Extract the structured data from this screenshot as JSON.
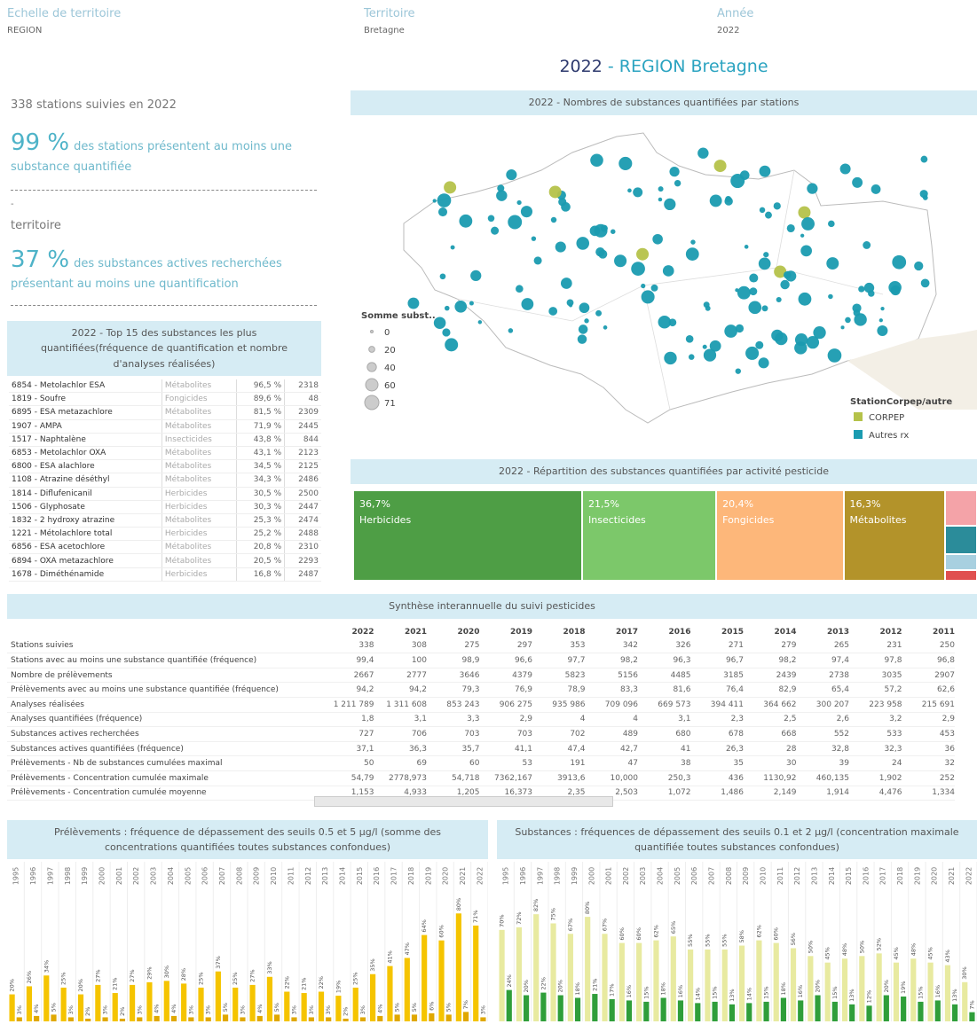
{
  "filters": [
    {
      "label": "Echelle de territoire",
      "value": "REGION"
    },
    {
      "label": "Territoire",
      "value": "Bretagne"
    },
    {
      "label": "Année",
      "value": "2022"
    }
  ],
  "title": {
    "year": "2022",
    "rest": "- REGION Bretagne"
  },
  "kpis": {
    "stations": "338 stations suivies en 2022",
    "stations_pct": "99 %",
    "stations_text": "des stations présentent au moins une substance quantifiée",
    "dash": "-",
    "territory": "territoire",
    "substances_pct": "37 %",
    "substances_text": "des substances actives recherchées présentant au moins une quantification"
  },
  "top15": {
    "title": "2022 - Top 15 des substances les plus quantifiées(fréquence de quantification et nombre d'analyses réalisées)",
    "rows": [
      [
        "6854 - Metolachlor ESA",
        "Métabolites",
        "96,5 %",
        "2318"
      ],
      [
        "1819 - Soufre",
        "Fongicides",
        "89,6 %",
        "48"
      ],
      [
        "6895 - ESA metazachlore",
        "Métabolites",
        "81,5 %",
        "2309"
      ],
      [
        "1907 - AMPA",
        "Métabolites",
        "71,9 %",
        "2445"
      ],
      [
        "1517 - Naphtalène",
        "Insecticides",
        "43,8 %",
        "844"
      ],
      [
        "6853 - Metolachlor OXA",
        "Métabolites",
        "43,1 %",
        "2123"
      ],
      [
        "6800 - ESA alachlore",
        "Métabolites",
        "34,5 %",
        "2125"
      ],
      [
        "1108 - Atrazine déséthyl",
        "Métabolites",
        "34,3 %",
        "2486"
      ],
      [
        "1814 - Diflufenicanil",
        "Herbicides",
        "30,5 %",
        "2500"
      ],
      [
        "1506 - Glyphosate",
        "Herbicides",
        "30,3 %",
        "2447"
      ],
      [
        "1832 - 2 hydroxy atrazine",
        "Métabolites",
        "25,3 %",
        "2474"
      ],
      [
        "1221 - Métolachlore total",
        "Herbicides",
        "25,2 %",
        "2488"
      ],
      [
        "6856 - ESA acetochlore",
        "Métabolites",
        "20,8 %",
        "2310"
      ],
      [
        "6894 - OXA metazachlore",
        "Métabolites",
        "20,5 %",
        "2293"
      ],
      [
        "1678 - Diméthénamide",
        "Herbicides",
        "16,8 %",
        "2487"
      ]
    ]
  },
  "map": {
    "title": "2022 - Nombres de substances quantifiées par stations",
    "size_legend": {
      "title": "Somme subst..",
      "values": [
        0,
        20,
        40,
        60,
        71
      ]
    },
    "color_legend": {
      "title": "StationCorpep/autre",
      "items": [
        {
          "name": "CORPEP",
          "color": "#b5c24a"
        },
        {
          "name": "Autres rx",
          "color": "#1a9bb0"
        }
      ]
    }
  },
  "treemap": {
    "title": "2022 - Répartition des substances quantifiées par activité pesticide",
    "type": "treemap",
    "segments": [
      {
        "name": "Herbicides",
        "value": 36.7,
        "value_label": "36,7%",
        "color": "#4e9e45"
      },
      {
        "name": "Insecticides",
        "value": 21.5,
        "value_label": "21,5%",
        "color": "#7cc86a"
      },
      {
        "name": "Fongicides",
        "value": 20.4,
        "value_label": "20,4%",
        "color": "#fdb77a"
      },
      {
        "name": "Métabolites",
        "value": 16.3,
        "value_label": "16,3%",
        "color": "#b3932a"
      },
      {
        "name": null,
        "value": 2.0,
        "color": "#f4a3a8"
      },
      {
        "name": null,
        "value": 1.6,
        "color": "#2b8c9a"
      },
      {
        "name": null,
        "value": 0.9,
        "color": "#a8d0e0"
      },
      {
        "name": null,
        "value": 0.6,
        "color": "#e05050"
      }
    ]
  },
  "synthesis": {
    "title": "Synthèse interannuelle du suivi pesticides",
    "years": [
      "2022",
      "2021",
      "2020",
      "2019",
      "2018",
      "2017",
      "2016",
      "2015",
      "2014",
      "2013",
      "2012",
      "2011"
    ],
    "rows": [
      {
        "label": "Stations suivies",
        "cells": [
          "338",
          "308",
          "275",
          "297",
          "353",
          "342",
          "326",
          "271",
          "279",
          "265",
          "231",
          "250"
        ]
      },
      {
        "label": "Stations avec au moins une substance quantifiée (fréquence)",
        "cells": [
          "99,4",
          "100",
          "98,9",
          "96,6",
          "97,7",
          "98,2",
          "96,3",
          "96,7",
          "98,2",
          "97,4",
          "97,8",
          "96,8"
        ]
      },
      {
        "label": "Nombre de prélèvements",
        "cells": [
          "2667",
          "2777",
          "3646",
          "4379",
          "5823",
          "5156",
          "4485",
          "3185",
          "2439",
          "2738",
          "3035",
          "2907"
        ]
      },
      {
        "label": "Prélèvements avec au moins une substance quantifiée (fréquence)",
        "cells": [
          "94,2",
          "94,2",
          "79,3",
          "76,9",
          "78,9",
          "83,3",
          "81,6",
          "76,4",
          "82,9",
          "65,4",
          "57,2",
          "62,6"
        ]
      },
      {
        "label": "Analyses réalisées",
        "cells": [
          "1 211 789",
          "1 311 608",
          "853 243",
          "906 275",
          "935 986",
          "709 096",
          "669 573",
          "394 411",
          "364 662",
          "300 207",
          "223 958",
          "215 691"
        ]
      },
      {
        "label": "Analyses quantifiées (fréquence)",
        "cells": [
          "1,8",
          "3,1",
          "3,3",
          "2,9",
          "4",
          "4",
          "3,1",
          "2,3",
          "2,5",
          "2,6",
          "3,2",
          "2,9"
        ]
      },
      {
        "label": "Substances actives recherchées",
        "cells": [
          "727",
          "706",
          "703",
          "703",
          "702",
          "489",
          "680",
          "678",
          "668",
          "552",
          "533",
          "453"
        ]
      },
      {
        "label": "Substances actives quantifiées (fréquence)",
        "cells": [
          "37,1",
          "36,3",
          "35,7",
          "41,1",
          "47,4",
          "42,7",
          "41",
          "26,3",
          "28",
          "32,8",
          "32,3",
          "36"
        ]
      },
      {
        "label": "Prélèvements - Nb de substances cumulées maximal",
        "cells": [
          "50",
          "69",
          "60",
          "53",
          "191",
          "47",
          "38",
          "35",
          "30",
          "39",
          "24",
          "32"
        ]
      },
      {
        "label": "Prélèvements - Concentration cumulée maximale",
        "cells": [
          "54,79",
          "2778,973",
          "54,718",
          "7362,167",
          "3913,6",
          "10,000",
          "250,3",
          "436",
          "1130,92",
          "460,135",
          "1,902",
          "252"
        ]
      },
      {
        "label": "Prélèvements - Concentration cumulée moyenne",
        "cells": [
          "1,153",
          "4,933",
          "1,205",
          "16,373",
          "2,35",
          "2,503",
          "1,072",
          "1,486",
          "2,149",
          "1,914",
          "4,476",
          "1,334"
        ]
      }
    ]
  },
  "chart_data": [
    {
      "type": "bar",
      "title": "Prélèvements : fréquence de dépassement des seuils 0.5 et 5 µg/l (somme des concentrations quantifiées toutes substances confondues)",
      "categories": [
        "1995",
        "1996",
        "1997",
        "1998",
        "1999",
        "2000",
        "2001",
        "2002",
        "2003",
        "2004",
        "2005",
        "2006",
        "2007",
        "2008",
        "2009",
        "2010",
        "2011",
        "2012",
        "2013",
        "2014",
        "2015",
        "2016",
        "2017",
        "2018",
        "2019",
        "2020",
        "2021",
        "2022"
      ],
      "ylim": [
        0,
        92
      ],
      "series": [
        {
          "color": "#f5c400",
          "values": [
            20,
            26,
            34,
            25,
            20,
            27,
            21,
            27,
            29,
            30,
            28,
            25,
            37,
            25,
            27,
            33,
            22,
            21,
            22,
            19,
            25,
            35,
            41,
            47,
            64,
            60,
            80,
            71
          ],
          "value_labels": [
            "20%",
            "26%",
            "34%",
            "25%",
            "20%",
            "27%",
            "21%",
            "27%",
            "29%",
            "30%",
            "28%",
            "25%",
            "37%",
            "25%",
            "27%",
            "33%",
            "22%",
            "21%",
            "22%",
            "19%",
            "25%",
            "35%",
            "41%",
            "47%",
            "64%",
            "60%",
            "80%",
            "71%"
          ]
        },
        {
          "color": "#e0a800",
          "values": [
            3,
            4,
            5,
            3,
            2,
            3,
            2,
            3,
            4,
            4,
            3,
            3,
            5,
            3,
            4,
            5,
            3,
            3,
            3,
            2,
            3,
            4,
            5,
            5,
            6,
            5,
            7,
            3
          ],
          "value_labels": [
            "3%",
            "4%",
            "5%",
            "3%",
            "2%",
            "3%",
            "2%",
            "3%",
            "4%",
            "4%",
            "3%",
            "3%",
            "5%",
            "3%",
            "4%",
            "5%",
            "3%",
            "3%",
            "3%",
            "2%",
            "3%",
            "4%",
            "5%",
            "5%",
            "6%",
            "5%",
            "7%",
            "3%"
          ]
        }
      ]
    },
    {
      "type": "bar",
      "title": "Substances : fréquences de dépassement des seuils 0.1 et 2 µg/l (concentration maximale quantifiée toutes substances confondues)",
      "categories": [
        "1995",
        "1996",
        "1997",
        "1998",
        "1999",
        "2000",
        "2001",
        "2002",
        "2003",
        "2004",
        "2005",
        "2006",
        "2007",
        "2008",
        "2009",
        "2010",
        "2011",
        "2012",
        "2013",
        "2014",
        "2015",
        "2016",
        "2017",
        "2018",
        "2019",
        "2020",
        "2021",
        "2022"
      ],
      "ylim": [
        0,
        95
      ],
      "series": [
        {
          "color": "#e8eaa0",
          "values": [
            70,
            72,
            82,
            75,
            67,
            80,
            67,
            60,
            60,
            62,
            65,
            55,
            55,
            55,
            58,
            62,
            60,
            56,
            50,
            45,
            48,
            50,
            52,
            45,
            48,
            45,
            43,
            30
          ],
          "value_labels": [
            "70%",
            "72%",
            "82%",
            "75%",
            "67%",
            "80%",
            "67%",
            "60%",
            "60%",
            "62%",
            "65%",
            "55%",
            "55%",
            "55%",
            "58%",
            "62%",
            "60%",
            "56%",
            "50%",
            "45%",
            "48%",
            "50%",
            "52%",
            "45%",
            "48%",
            "45%",
            "43%",
            "30%"
          ]
        },
        {
          "color": "#2f9e3a",
          "values": [
            24,
            20,
            22,
            20,
            18,
            21,
            17,
            16,
            15,
            18,
            16,
            14,
            15,
            13,
            14,
            15,
            18,
            16,
            20,
            15,
            13,
            12,
            20,
            19,
            15,
            16,
            13,
            7
          ],
          "value_labels": [
            "24%",
            "20%",
            "22%",
            "20%",
            "18%",
            "21%",
            "17%",
            "16%",
            "15%",
            "18%",
            "16%",
            "14%",
            "15%",
            "13%",
            "14%",
            "15%",
            "18%",
            "16%",
            "20%",
            "15%",
            "13%",
            "12%",
            "20%",
            "19%",
            "15%",
            "16%",
            "13%",
            "7%"
          ]
        }
      ]
    }
  ]
}
